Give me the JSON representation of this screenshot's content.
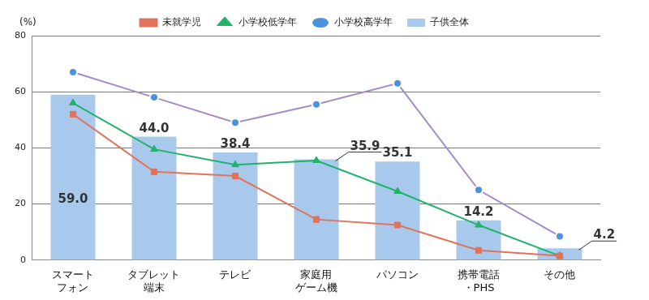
{
  "chart_data": {
    "type": "bar",
    "y_label": "(%)",
    "categories": [
      "スマート\nフォン",
      "タブレット\n端末",
      "テレビ",
      "家庭用\nゲーム機",
      "パソコン",
      "携帯電話\n・PHS",
      "その他"
    ],
    "ylim": [
      0,
      80
    ],
    "yticks": [
      0,
      20,
      40,
      60,
      80
    ],
    "grid": true,
    "legend": "top",
    "series": [
      {
        "name": "子供全体",
        "type": "bar",
        "color": "#a9c9ec",
        "values": [
          59.0,
          44.0,
          38.4,
          35.9,
          35.1,
          14.2,
          4.2
        ],
        "value_labels": [
          "59.0",
          "44.0",
          "38.4",
          "35.9",
          "35.1",
          "14.2",
          "4.2"
        ],
        "data_labels": true
      },
      {
        "name": "未就学児",
        "type": "line",
        "color": "#e0735c",
        "marker": "square",
        "values": [
          52,
          31.5,
          30,
          14.5,
          12.5,
          3.5,
          1.5
        ]
      },
      {
        "name": "小学校低学年",
        "type": "line",
        "color": "#1fb36b",
        "marker": "triangle",
        "values": [
          56,
          39.5,
          34,
          35.5,
          24.5,
          12.5,
          1.5
        ]
      },
      {
        "name": "小学校高学年",
        "type": "line",
        "color": "#a48bc6",
        "marker": "circle",
        "values": [
          67,
          58,
          49,
          55.5,
          63,
          25,
          8.5
        ]
      }
    ]
  }
}
